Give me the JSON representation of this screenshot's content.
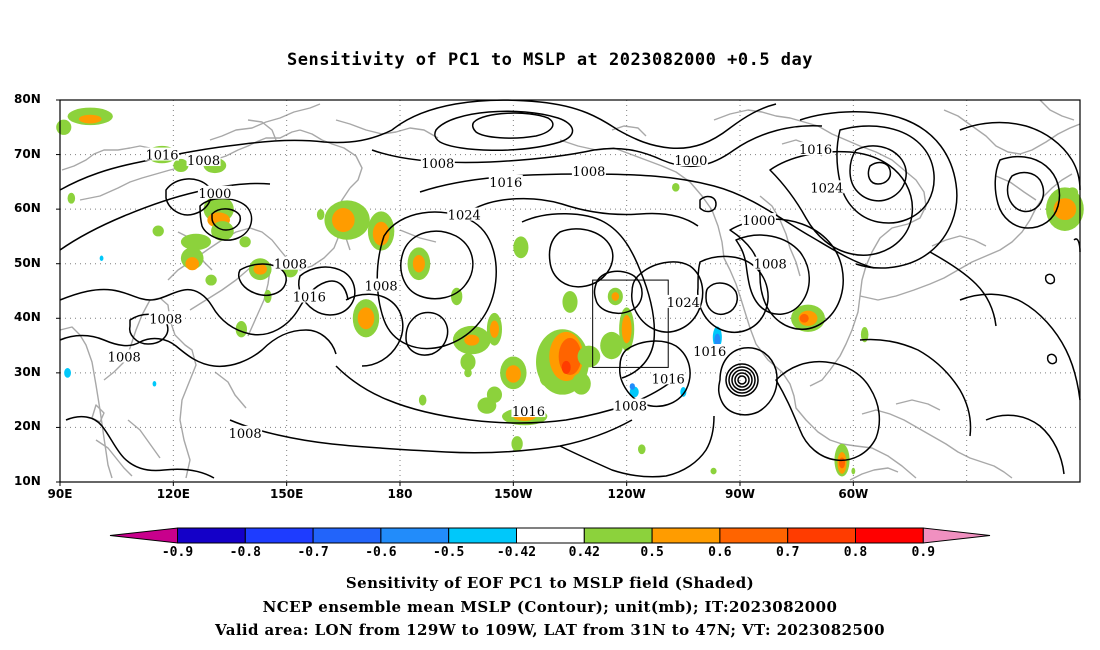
{
  "title": "Sensitivity of PC1 to MSLP at 2023082000 +0.5 day",
  "map": {
    "lat_labels": [
      "80N",
      "70N",
      "60N",
      "50N",
      "40N",
      "30N",
      "20N",
      "10N"
    ],
    "lon_labels": [
      "90E",
      "120E",
      "150E",
      "180",
      "150W",
      "120W",
      "90W",
      "60W"
    ],
    "contour_labels": [
      {
        "text": "1016",
        "lon": 117,
        "lat": 70
      },
      {
        "text": "1008",
        "lon": 128,
        "lat": 69
      },
      {
        "text": "1000",
        "lon": 131,
        "lat": 63
      },
      {
        "text": "1008",
        "lon": 190,
        "lat": 68.5
      },
      {
        "text": "1016",
        "lon": 208,
        "lat": 65
      },
      {
        "text": "1008",
        "lon": 230,
        "lat": 67
      },
      {
        "text": "1000",
        "lon": 257,
        "lat": 69
      },
      {
        "text": "1016",
        "lon": 290,
        "lat": 71
      },
      {
        "text": "1024",
        "lon": 293,
        "lat": 64
      },
      {
        "text": "1024",
        "lon": 197,
        "lat": 59
      },
      {
        "text": "1000",
        "lon": 275,
        "lat": 58
      },
      {
        "text": "1008",
        "lon": 151,
        "lat": 50
      },
      {
        "text": "1008",
        "lon": 175,
        "lat": 46
      },
      {
        "text": "1016",
        "lon": 156,
        "lat": 44
      },
      {
        "text": "1008",
        "lon": 278,
        "lat": 50
      },
      {
        "text": "1024",
        "lon": 255,
        "lat": 43
      },
      {
        "text": "1008",
        "lon": 118,
        "lat": 40
      },
      {
        "text": "1008",
        "lon": 107,
        "lat": 33
      },
      {
        "text": "1016",
        "lon": 262,
        "lat": 34
      },
      {
        "text": "1016",
        "lon": 251,
        "lat": 29
      },
      {
        "text": "1016",
        "lon": 214,
        "lat": 23
      },
      {
        "text": "1008",
        "lon": 241,
        "lat": 24
      },
      {
        "text": "1008",
        "lon": 139,
        "lat": 19
      }
    ],
    "valid_box": {
      "lon_west": 231,
      "lon_east": 251,
      "lat_south": 31,
      "lat_north": 47
    },
    "colors": {
      "coast": "#a8a8a8",
      "contour": "#000000",
      "grid": "#7f7f7f"
    }
  },
  "colorbar": {
    "labels": [
      "-0.9",
      "-0.8",
      "-0.7",
      "-0.6",
      "-0.5",
      "-0.42",
      "0.42",
      "0.5",
      "0.6",
      "0.7",
      "0.8",
      "0.9"
    ],
    "colors": [
      "#c8008c",
      "#1400c8",
      "#1e3cff",
      "#2264fa",
      "#228cfa",
      "#00c8fa",
      "#ffffff",
      "#8cd23c",
      "#ff9c00",
      "#ff6400",
      "#ff3c00",
      "#ff0000",
      "#f090c0"
    ]
  },
  "footer": {
    "line1": "Sensitivity of EOF PC1 to MSLP field (Shaded)",
    "line2": "NCEP ensemble mean MSLP (Contour); unit(mb); IT:2023082000",
    "line3": "Valid area: LON from 129W to 109W, LAT from 31N to 47N; VT: 2023082500"
  }
}
